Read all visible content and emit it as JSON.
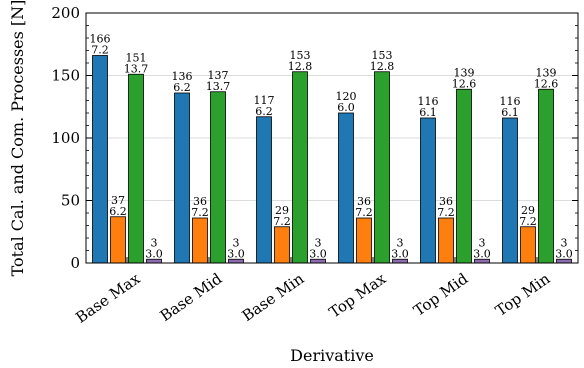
{
  "chart_data": {
    "type": "bar",
    "categories": [
      "Base Max",
      "Base Mid",
      "Base Min",
      "Top Max",
      "Top Mid",
      "Top Min"
    ],
    "series": [
      {
        "values": [
          166,
          136,
          117,
          120,
          116,
          116
        ],
        "sublabels": [
          "7.2",
          "6.2",
          "6.2",
          "6.0",
          "6.1",
          "6.1"
        ],
        "color": "#1f77b4"
      },
      {
        "values": [
          37,
          36,
          29,
          36,
          36,
          29
        ],
        "sublabels": [
          "6.2",
          "7.2",
          "7.2",
          "7.2",
          "7.2",
          "7.2"
        ],
        "color": "#ff7f0e"
      },
      {
        "values": [
          151,
          137,
          153,
          153,
          139,
          139
        ],
        "sublabels": [
          "13.7",
          "13.7",
          "12.8",
          "12.8",
          "12.6",
          "12.6"
        ],
        "color": "#2ca02c"
      },
      {
        "values": [
          3,
          3,
          3,
          3,
          3,
          3
        ],
        "sublabels": [
          "3.0",
          "3.0",
          "3.0",
          "3.0",
          "3.0",
          "3.0"
        ],
        "color": "#8c6bb1"
      }
    ],
    "xlabel": "Derivative",
    "ylabel": "Total Cal. and Com. Processes [N]",
    "ylim": [
      0,
      200
    ],
    "yticks": [
      "0",
      "50",
      "100",
      "150",
      "200"
    ],
    "grid": true
  }
}
